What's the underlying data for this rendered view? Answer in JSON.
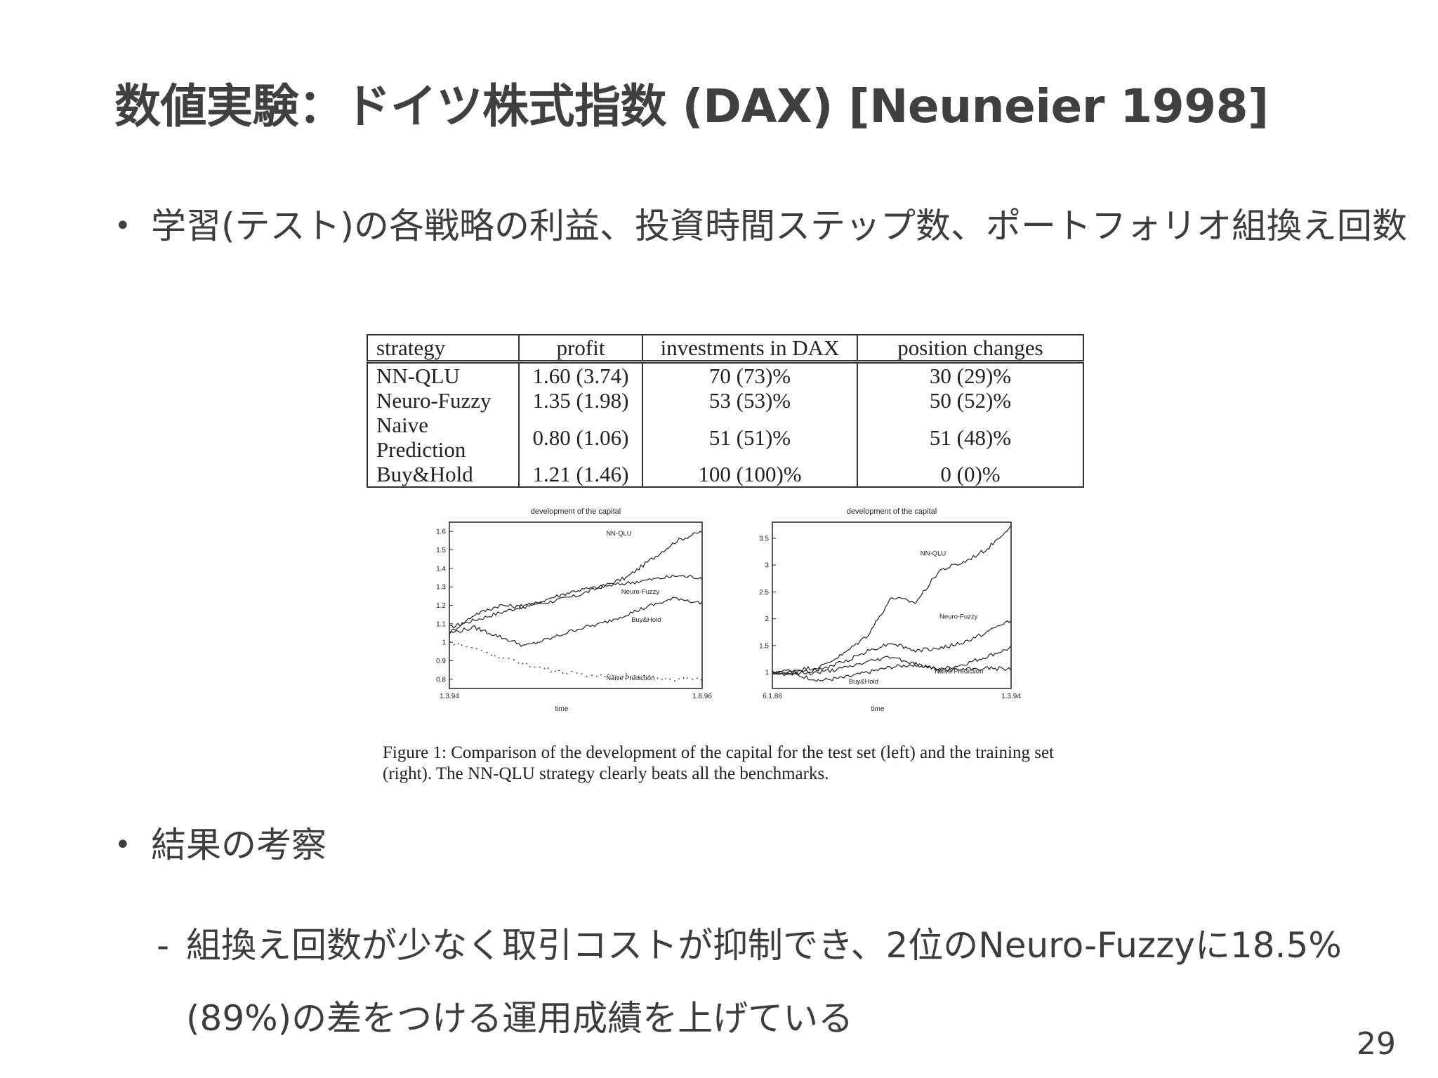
{
  "slide": {
    "title": "数値実験：ドイツ株式指数 (DAX) [Neuneier 1998]",
    "page_number": "29"
  },
  "bullets": [
    {
      "bullet": "•",
      "text": "学習(テスト)の各戦略の利益、投資時間ステップ数、ポートフォリオ組換え回数"
    },
    {
      "bullet": "•",
      "text": "結果の考察"
    }
  ],
  "sub_bullets": [
    {
      "dash": "-",
      "text": "組換え回数が少なく取引コストが抑制でき、2位のNeuro-Fuzzyに18.5%(89%)の差をつける運用成績を上げている"
    }
  ],
  "table": {
    "headers": [
      "strategy",
      "profit",
      "investments in DAX",
      "position changes"
    ],
    "rows": [
      [
        "NN-QLU",
        "1.60 (3.74)",
        "70 (73)%",
        "30 (29)%"
      ],
      [
        "Neuro-Fuzzy",
        "1.35 (1.98)",
        "53 (53)%",
        "50 (52)%"
      ],
      [
        "Naive Prediction",
        "0.80 (1.06)",
        "51 (51)%",
        "51 (48)%"
      ],
      [
        "Buy&Hold",
        "1.21 (1.46)",
        "100 (100)%",
        "0 (0)%"
      ]
    ]
  },
  "caption": "Figure 1: Comparison of the development of the capital for the test set (left) and the training set (right). The NN-QLU strategy clearly beats all the benchmarks.",
  "chart_data": [
    {
      "type": "line",
      "title": "development of the capital",
      "xlabel": "time",
      "ylabel": "",
      "x_tick_labels": [
        "1.3.94",
        "1.8.96"
      ],
      "yticks": [
        0.8,
        0.9,
        1,
        1.1,
        1.2,
        1.3,
        1.4,
        1.5,
        1.6
      ],
      "ylim": [
        0.75,
        1.65
      ],
      "x": [
        0,
        0.1,
        0.2,
        0.3,
        0.4,
        0.5,
        0.6,
        0.7,
        0.8,
        0.9,
        1.0
      ],
      "series": [
        {
          "name": "NN-QLU",
          "style": "solid",
          "values": [
            1.08,
            1.12,
            1.16,
            1.2,
            1.22,
            1.25,
            1.3,
            1.35,
            1.45,
            1.55,
            1.6
          ]
        },
        {
          "name": "Neuro-Fuzzy",
          "style": "solid",
          "values": [
            1.05,
            1.15,
            1.2,
            1.19,
            1.24,
            1.28,
            1.3,
            1.32,
            1.34,
            1.36,
            1.35
          ]
        },
        {
          "name": "Buy&Hold",
          "style": "solid",
          "values": [
            1.05,
            1.08,
            1.03,
            0.98,
            1.02,
            1.07,
            1.1,
            1.15,
            1.2,
            1.24,
            1.21
          ]
        },
        {
          "name": "Naive Prediction",
          "style": "dotted",
          "values": [
            1.0,
            0.97,
            0.92,
            0.88,
            0.85,
            0.83,
            0.82,
            0.82,
            0.81,
            0.8,
            0.8
          ]
        }
      ]
    },
    {
      "type": "line",
      "title": "development of the capital",
      "xlabel": "time",
      "ylabel": "",
      "x_tick_labels": [
        "6.1.86",
        "1.3.94"
      ],
      "yticks": [
        1,
        1.5,
        2,
        2.5,
        3,
        3.5
      ],
      "ylim": [
        0.7,
        3.8
      ],
      "x": [
        0,
        0.1,
        0.2,
        0.3,
        0.4,
        0.5,
        0.6,
        0.7,
        0.8,
        0.9,
        1.0
      ],
      "series": [
        {
          "name": "NN-QLU",
          "style": "solid",
          "values": [
            1.0,
            1.05,
            1.1,
            1.35,
            1.7,
            2.4,
            2.3,
            2.9,
            3.05,
            3.3,
            3.74
          ]
        },
        {
          "name": "Neuro-Fuzzy",
          "style": "solid",
          "values": [
            1.0,
            1.0,
            1.05,
            1.2,
            1.4,
            1.55,
            1.4,
            1.45,
            1.55,
            1.75,
            1.98
          ]
        },
        {
          "name": "Naive Prediction",
          "style": "solid",
          "values": [
            1.0,
            0.98,
            1.0,
            1.08,
            1.2,
            1.3,
            1.15,
            1.05,
            1.05,
            1.08,
            1.06
          ]
        },
        {
          "name": "Buy&Hold",
          "style": "solid",
          "values": [
            1.0,
            0.95,
            0.85,
            0.9,
            1.0,
            1.1,
            1.15,
            1.05,
            1.15,
            1.3,
            1.46
          ]
        }
      ]
    }
  ]
}
